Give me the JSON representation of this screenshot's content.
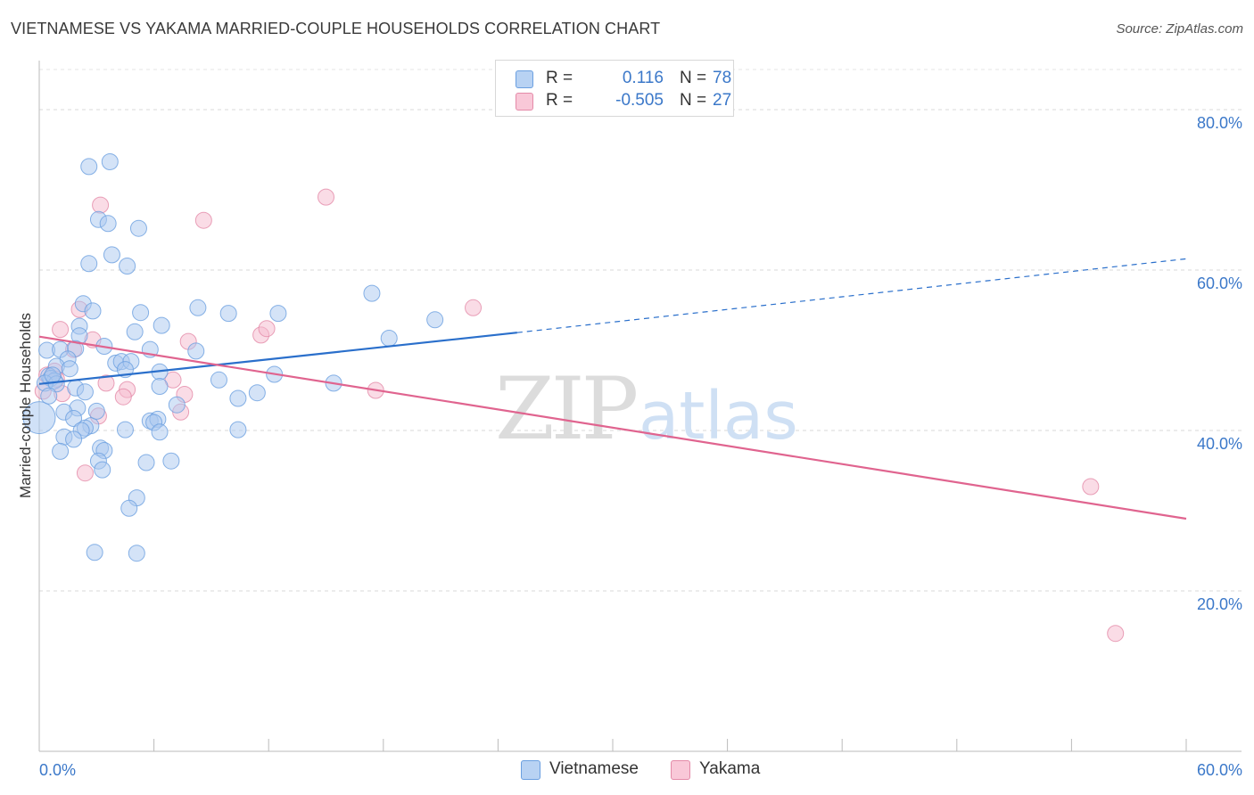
{
  "title": "VIETNAMESE VS YAKAMA MARRIED-COUPLE HOUSEHOLDS CORRELATION CHART",
  "source": "Source: ZipAtlas.com",
  "watermark": {
    "zip": "ZIP",
    "atlas": "atlas"
  },
  "legend": {
    "rows": [
      {
        "r_label": "R =",
        "r_value": "0.116",
        "n_label": "N =",
        "n_value": "78",
        "color": "#b8d2f3",
        "border": "#6a9fe0"
      },
      {
        "r_label": "R =",
        "r_value": "-0.505",
        "n_label": "N =",
        "n_value": "27",
        "color": "#f9c8d8",
        "border": "#e48aa8"
      }
    ]
  },
  "bottom_legend": [
    {
      "label": "Vietnamese",
      "color": "#b8d2f3",
      "border": "#6a9fe0"
    },
    {
      "label": "Yakama",
      "color": "#f9c8d8",
      "border": "#e48aa8"
    }
  ],
  "chart_data": {
    "type": "scatter",
    "title": "VIETNAMESE VS YAKAMA MARRIED-COUPLE HOUSEHOLDS CORRELATION CHART",
    "xlabel": "",
    "ylabel": "Married-couple Households",
    "xlim": [
      0,
      60
    ],
    "ylim": [
      0,
      85
    ],
    "x_tick_labels": [
      {
        "value": 0,
        "label": "0.0%"
      },
      {
        "value": 60,
        "label": "60.0%"
      }
    ],
    "y_tick_labels": [
      {
        "value": 20,
        "label": "20.0%"
      },
      {
        "value": 40,
        "label": "40.0%"
      },
      {
        "value": 60,
        "label": "60.0%"
      },
      {
        "value": 80,
        "label": "80.0%"
      }
    ],
    "grid": true,
    "series": [
      {
        "name": "Vietnamese",
        "color": "#a9c8f0",
        "stroke": "#6a9fe0",
        "trend": {
          "x0": 0,
          "y0": 45.8,
          "x1": 25,
          "y1": 52.2,
          "dashed_to_x": 60,
          "dashed_to_y": 61.4,
          "color": "#2a6fcb"
        },
        "points": [
          [
            2.6,
            72.9
          ],
          [
            3.7,
            73.5
          ],
          [
            3.1,
            66.3
          ],
          [
            3.6,
            65.8
          ],
          [
            5.2,
            65.2
          ],
          [
            3.8,
            61.9
          ],
          [
            2.6,
            60.8
          ],
          [
            4.6,
            60.5
          ],
          [
            2.3,
            55.8
          ],
          [
            2.8,
            54.9
          ],
          [
            5.3,
            54.7
          ],
          [
            8.3,
            55.3
          ],
          [
            9.9,
            54.6
          ],
          [
            12.5,
            54.6
          ],
          [
            17.4,
            57.1
          ],
          [
            20.7,
            53.8
          ],
          [
            2.1,
            53.0
          ],
          [
            6.4,
            53.1
          ],
          [
            5.0,
            52.3
          ],
          [
            18.3,
            51.5
          ],
          [
            2.1,
            51.8
          ],
          [
            3.4,
            50.5
          ],
          [
            0.4,
            50.0
          ],
          [
            1.1,
            50.1
          ],
          [
            1.9,
            50.2
          ],
          [
            5.8,
            50.1
          ],
          [
            8.2,
            49.9
          ],
          [
            1.5,
            48.9
          ],
          [
            4.0,
            48.4
          ],
          [
            4.3,
            48.6
          ],
          [
            4.8,
            48.6
          ],
          [
            0.9,
            48.0
          ],
          [
            4.5,
            47.6
          ],
          [
            6.3,
            47.3
          ],
          [
            0.5,
            46.8
          ],
          [
            0.6,
            46.5
          ],
          [
            0.8,
            46.2
          ],
          [
            0.3,
            45.9
          ],
          [
            0.9,
            45.8
          ],
          [
            9.4,
            46.3
          ],
          [
            12.3,
            47.0
          ],
          [
            15.4,
            45.9
          ],
          [
            1.9,
            45.3
          ],
          [
            6.3,
            45.5
          ],
          [
            2.0,
            42.8
          ],
          [
            10.4,
            44.0
          ],
          [
            1.3,
            42.3
          ],
          [
            1.8,
            41.5
          ],
          [
            5.8,
            41.2
          ],
          [
            6.2,
            41.4
          ],
          [
            6.0,
            41.0
          ],
          [
            2.7,
            40.6
          ],
          [
            2.4,
            40.3
          ],
          [
            2.2,
            40.0
          ],
          [
            4.5,
            40.1
          ],
          [
            6.3,
            39.8
          ],
          [
            10.4,
            40.1
          ],
          [
            0.0,
            41.6
          ],
          [
            1.3,
            39.2
          ],
          [
            1.8,
            38.9
          ],
          [
            3.2,
            37.8
          ],
          [
            3.4,
            37.5
          ],
          [
            1.1,
            37.4
          ],
          [
            3.1,
            36.2
          ],
          [
            5.6,
            36.0
          ],
          [
            6.9,
            36.2
          ],
          [
            3.3,
            35.1
          ],
          [
            5.1,
            31.6
          ],
          [
            4.7,
            30.3
          ],
          [
            2.9,
            24.8
          ],
          [
            5.1,
            24.7
          ],
          [
            0.5,
            44.3
          ],
          [
            0.7,
            46.9
          ],
          [
            3.0,
            42.4
          ],
          [
            2.4,
            44.8
          ],
          [
            7.2,
            43.2
          ],
          [
            1.6,
            47.7
          ],
          [
            11.4,
            44.7
          ]
        ]
      },
      {
        "name": "Yakama",
        "color": "#f6b9cd",
        "stroke": "#e48aa8",
        "trend": {
          "x0": 0,
          "y0": 51.7,
          "x1": 60,
          "y1": 29.0,
          "color": "#e0648f"
        },
        "points": [
          [
            3.2,
            68.1
          ],
          [
            8.6,
            66.2
          ],
          [
            15.0,
            69.1
          ],
          [
            1.1,
            52.6
          ],
          [
            2.1,
            55.1
          ],
          [
            2.8,
            51.3
          ],
          [
            7.8,
            51.1
          ],
          [
            11.6,
            51.9
          ],
          [
            11.9,
            52.7
          ],
          [
            22.7,
            55.3
          ],
          [
            1.8,
            50.1
          ],
          [
            0.8,
            47.4
          ],
          [
            3.5,
            45.9
          ],
          [
            4.6,
            45.1
          ],
          [
            7.0,
            46.3
          ],
          [
            7.6,
            44.5
          ],
          [
            0.2,
            44.9
          ],
          [
            1.2,
            44.6
          ],
          [
            4.4,
            44.2
          ],
          [
            17.6,
            45.0
          ],
          [
            7.4,
            42.3
          ],
          [
            3.1,
            41.8
          ],
          [
            2.4,
            34.7
          ],
          [
            55.0,
            33.0
          ],
          [
            56.3,
            14.7
          ],
          [
            0.4,
            46.9
          ],
          [
            0.9,
            46.4
          ]
        ]
      }
    ]
  }
}
